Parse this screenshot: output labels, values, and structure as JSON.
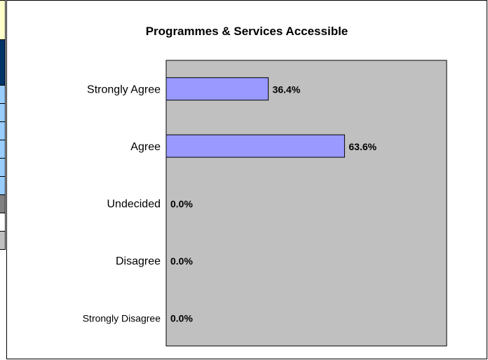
{
  "chart_data": {
    "type": "bar",
    "orientation": "horizontal",
    "title": "Programmes & Services Accessible",
    "categories": [
      "Strongly Agree",
      "Agree",
      "Undecided",
      "Disagree",
      "Strongly Disagree"
    ],
    "values": [
      36.4,
      63.6,
      0.0,
      0.0,
      0.0
    ],
    "data_labels": [
      "36.4%",
      "63.6%",
      "0.0%",
      "0.0%",
      "0.0%"
    ],
    "xlim": [
      0,
      100
    ],
    "xlabel": "",
    "ylabel": "",
    "grid": false,
    "legend": "none",
    "colors": {
      "bar_fill": "#9999ff",
      "plot_background": "#c0c0c0",
      "border": "#000000"
    }
  },
  "left_strip": {
    "cells": [
      {
        "color": "#ffffcc"
      },
      {
        "color": "#003366"
      },
      {
        "color": "#99ccff"
      },
      {
        "color": "#99ccff"
      },
      {
        "color": "#99ccff"
      },
      {
        "color": "#99ccff"
      },
      {
        "color": "#99ccff"
      },
      {
        "color": "#99ccff"
      },
      {
        "color": "#808080"
      },
      {
        "color": "#ffffff"
      },
      {
        "color": "#c0c0c0"
      }
    ]
  }
}
